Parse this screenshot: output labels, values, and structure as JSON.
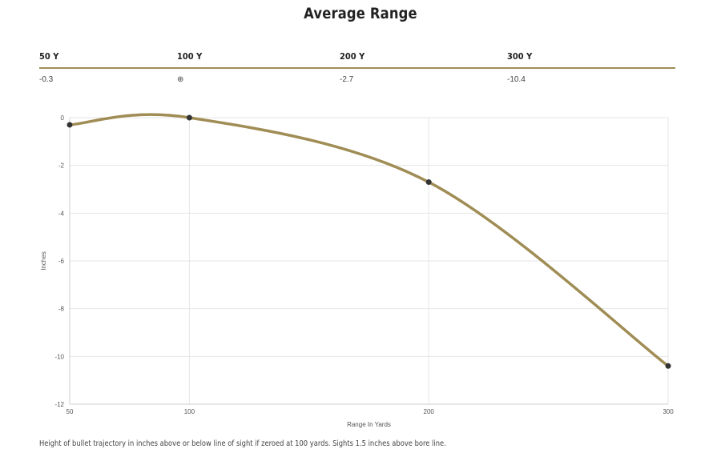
{
  "title": "Average Range",
  "range_table": {
    "headers": [
      "50 Y",
      "100 Y",
      "200 Y",
      "300 Y"
    ],
    "values": [
      "-0.3",
      "⊕",
      "-2.7",
      "-10.4"
    ],
    "zero_icon": "crosshair-icon"
  },
  "chart_data": {
    "type": "line",
    "x": [
      50,
      100,
      200,
      300
    ],
    "y": [
      -0.3,
      0,
      -2.7,
      -10.4
    ],
    "xlabel": "Range In Yards",
    "ylabel": "Inches",
    "xticks": [
      50,
      100,
      200,
      300
    ],
    "yticks": [
      0,
      -2,
      -4,
      -6,
      -8,
      -10,
      -12
    ],
    "xlim": [
      50,
      300
    ],
    "ylim": [
      -12,
      0
    ],
    "grid": true,
    "line_color": "#a08d55",
    "point_color": "#333333"
  },
  "footnote": "Height of bullet trajectory in inches above or below line of sight if zeroed at 100 yards. Sights 1.5 inches above bore line."
}
